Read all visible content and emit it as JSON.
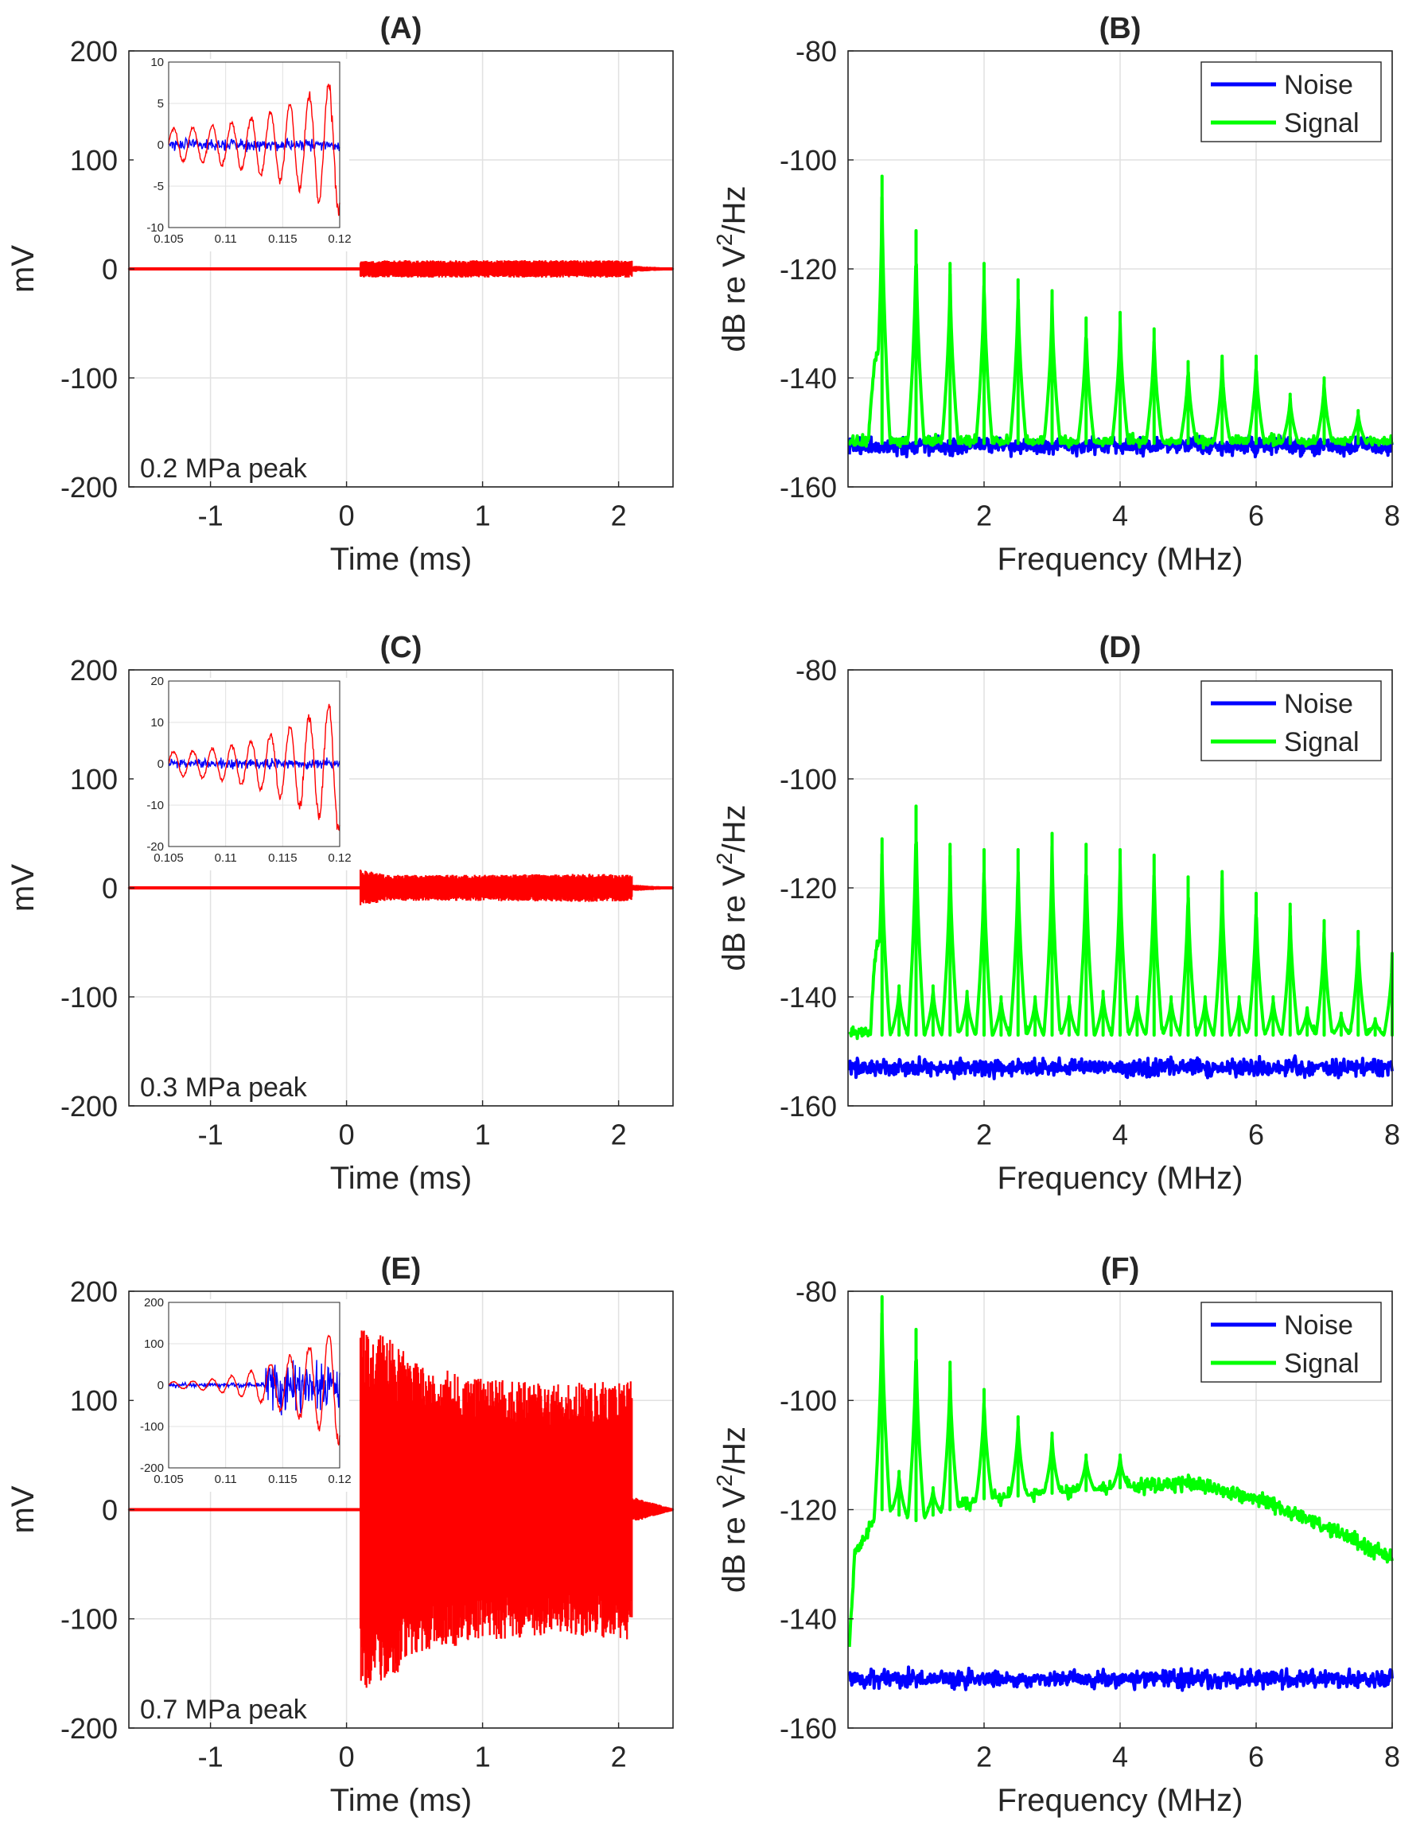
{
  "figure": {
    "panels": [
      {
        "id": "A",
        "title": "(A)",
        "kind": "time"
      },
      {
        "id": "B",
        "title": "(B)",
        "kind": "spectrum"
      },
      {
        "id": "C",
        "title": "(C)",
        "kind": "time"
      },
      {
        "id": "D",
        "title": "(D)",
        "kind": "spectrum"
      },
      {
        "id": "E",
        "title": "(E)",
        "kind": "time"
      },
      {
        "id": "F",
        "title": "(F)",
        "kind": "spectrum"
      }
    ]
  },
  "colors": {
    "time_trace": "#ff0000",
    "inset_blue": "#0000ff",
    "noise": "#0000ff",
    "signal": "#00ff00",
    "grid": "#e1e1e1",
    "axis": "#262626"
  },
  "chart_data": [
    {
      "panel": "A",
      "type": "line",
      "title": "(A)",
      "xlabel": "Time (ms)",
      "ylabel": "mV",
      "xlim": [
        -1.6,
        2.4
      ],
      "ylim": [
        -200,
        200
      ],
      "xticks": [
        -1,
        0,
        1,
        2
      ],
      "yticks": [
        -200,
        -100,
        0,
        100,
        200
      ],
      "annotation": "0.2 MPa peak",
      "series": [
        {
          "name": "",
          "color": "#ff0000",
          "envelope": [
            [
              -1.6,
              1
            ],
            [
              0.1,
              1
            ],
            [
              0.1,
              8
            ],
            [
              0.3,
              8
            ],
            [
              1.0,
              8
            ],
            [
              1.8,
              8
            ],
            [
              2.1,
              8
            ],
            [
              2.1,
              3
            ],
            [
              2.4,
              1
            ]
          ]
        }
      ],
      "inset": {
        "xlim": [
          0.105,
          0.12
        ],
        "ylim": [
          -10,
          10
        ],
        "xticks": [
          0.105,
          0.11,
          0.115,
          0.12
        ],
        "yticks": [
          -10,
          -5,
          0,
          5,
          10
        ],
        "red": {
          "amp_start": 2,
          "amp_end": 8,
          "period": 0.0017
        },
        "blue": {
          "amp": 0.6
        }
      }
    },
    {
      "panel": "B",
      "type": "line",
      "title": "(B)",
      "xlabel": "Frequency (MHz)",
      "ylabel": "dB re V²/Hz",
      "xlim": [
        0,
        8
      ],
      "ylim": [
        -160,
        -80
      ],
      "xticks": [
        2,
        4,
        6,
        8
      ],
      "yticks": [
        -160,
        -140,
        -120,
        -100,
        -80
      ],
      "legend": {
        "position": "top-right",
        "entries": [
          "Noise",
          "Signal"
        ]
      },
      "series": [
        {
          "name": "Noise",
          "color": "#0000ff",
          "baseline": -152.5
        },
        {
          "name": "Signal",
          "color": "#00ff00",
          "baseline": -152,
          "peaks": [
            [
              0.5,
              -103
            ],
            [
              1.0,
              -113
            ],
            [
              1.5,
              -119
            ],
            [
              2.0,
              -119
            ],
            [
              2.5,
              -122
            ],
            [
              3.0,
              -124
            ],
            [
              3.5,
              -129
            ],
            [
              4.0,
              -128
            ],
            [
              4.5,
              -131
            ],
            [
              5.0,
              -137
            ],
            [
              5.5,
              -136
            ],
            [
              6.0,
              -136
            ],
            [
              6.5,
              -143
            ],
            [
              7.0,
              -140
            ],
            [
              7.5,
              -146
            ]
          ],
          "bump": {
            "center": 0.45,
            "peak": -135,
            "width": 0.15
          }
        }
      ]
    },
    {
      "panel": "C",
      "type": "line",
      "title": "(C)",
      "xlabel": "Time (ms)",
      "ylabel": "mV",
      "xlim": [
        -1.6,
        2.4
      ],
      "ylim": [
        -200,
        200
      ],
      "xticks": [
        -1,
        0,
        1,
        2
      ],
      "yticks": [
        -200,
        -100,
        0,
        100,
        200
      ],
      "annotation": "0.3 MPa peak",
      "series": [
        {
          "name": "",
          "color": "#ff0000",
          "envelope": [
            [
              -1.6,
              1
            ],
            [
              0.1,
              1
            ],
            [
              0.1,
              17
            ],
            [
              0.3,
              12
            ],
            [
              1.0,
              12
            ],
            [
              1.8,
              13
            ],
            [
              2.1,
              12
            ],
            [
              2.1,
              3
            ],
            [
              2.4,
              1
            ]
          ]
        }
      ],
      "inset": {
        "xlim": [
          0.105,
          0.12
        ],
        "ylim": [
          -20,
          20
        ],
        "xticks": [
          0.105,
          0.11,
          0.115,
          0.12
        ],
        "yticks": [
          -20,
          -10,
          0,
          10,
          20
        ],
        "red": {
          "amp_start": 3,
          "amp_end": 16,
          "period": 0.0017
        },
        "blue": {
          "amp": 1
        }
      }
    },
    {
      "panel": "D",
      "type": "line",
      "title": "(D)",
      "xlabel": "Frequency (MHz)",
      "ylabel": "dB re V²/Hz",
      "xlim": [
        0,
        8
      ],
      "ylim": [
        -160,
        -80
      ],
      "xticks": [
        2,
        4,
        6,
        8
      ],
      "yticks": [
        -160,
        -140,
        -120,
        -100,
        -80
      ],
      "legend": {
        "position": "top-right",
        "entries": [
          "Noise",
          "Signal"
        ]
      },
      "series": [
        {
          "name": "Noise",
          "color": "#0000ff",
          "baseline": -153
        },
        {
          "name": "Signal",
          "color": "#00ff00",
          "baseline": -147,
          "peaks": [
            [
              0.5,
              -111
            ],
            [
              0.75,
              -138
            ],
            [
              1.0,
              -105
            ],
            [
              1.25,
              -138
            ],
            [
              1.5,
              -112
            ],
            [
              1.75,
              -139
            ],
            [
              2.0,
              -113
            ],
            [
              2.25,
              -140
            ],
            [
              2.5,
              -113
            ],
            [
              2.75,
              -140
            ],
            [
              3.0,
              -110
            ],
            [
              3.25,
              -140
            ],
            [
              3.5,
              -112
            ],
            [
              3.75,
              -139
            ],
            [
              4.0,
              -113
            ],
            [
              4.25,
              -140
            ],
            [
              4.5,
              -114
            ],
            [
              4.75,
              -140
            ],
            [
              5.0,
              -118
            ],
            [
              5.25,
              -140
            ],
            [
              5.5,
              -117
            ],
            [
              5.75,
              -140
            ],
            [
              6.0,
              -121
            ],
            [
              6.25,
              -140
            ],
            [
              6.5,
              -123
            ],
            [
              6.75,
              -142
            ],
            [
              7.0,
              -126
            ],
            [
              7.25,
              -143
            ],
            [
              7.5,
              -128
            ],
            [
              7.75,
              -144
            ],
            [
              8.0,
              -132
            ]
          ],
          "bump": {
            "center": 0.45,
            "peak": -130,
            "width": 0.12
          }
        }
      ]
    },
    {
      "panel": "E",
      "type": "line",
      "title": "(E)",
      "xlabel": "Time (ms)",
      "ylabel": "mV",
      "xlim": [
        -1.6,
        2.4
      ],
      "ylim": [
        -200,
        200
      ],
      "xticks": [
        -1,
        0,
        1,
        2
      ],
      "yticks": [
        -200,
        -100,
        0,
        100,
        200
      ],
      "annotation": "0.7 MPa peak",
      "series": [
        {
          "name": "",
          "color": "#ff0000",
          "envelope": [
            [
              -1.6,
              1
            ],
            [
              0.1,
              1
            ],
            [
              0.1,
              165
            ],
            [
              0.3,
              160
            ],
            [
              0.5,
              135
            ],
            [
              1.0,
              120
            ],
            [
              1.5,
              115
            ],
            [
              2.1,
              120
            ],
            [
              2.1,
              12
            ],
            [
              2.4,
              1
            ]
          ]
        }
      ],
      "inset": {
        "xlim": [
          0.105,
          0.12
        ],
        "ylim": [
          -200,
          200
        ],
        "xticks": [
          0.105,
          0.11,
          0.115,
          0.12
        ],
        "yticks": [
          -200,
          -100,
          0,
          100,
          200
        ],
        "red": {
          "amp_start": 8,
          "amp_end": 140,
          "period": 0.0017
        },
        "blue": {
          "amp": 5,
          "burst_from": 0.1135,
          "burst_amp": 50
        }
      }
    },
    {
      "panel": "F",
      "type": "line",
      "title": "(F)",
      "xlabel": "Frequency (MHz)",
      "ylabel": "dB re V²/Hz",
      "xlim": [
        0,
        8
      ],
      "ylim": [
        -160,
        -80
      ],
      "xticks": [
        2,
        4,
        6,
        8
      ],
      "yticks": [
        -160,
        -140,
        -120,
        -100,
        -80
      ],
      "legend": {
        "position": "top-right",
        "entries": [
          "Noise",
          "Signal"
        ]
      },
      "series": [
        {
          "name": "Noise",
          "color": "#0000ff",
          "baseline": -151
        },
        {
          "name": "Signal",
          "color": "#00ff00",
          "baseline_curve": [
            [
              0,
              -149
            ],
            [
              0.1,
              -128
            ],
            [
              0.5,
              -120
            ],
            [
              1.0,
              -122
            ],
            [
              2.0,
              -118
            ],
            [
              3.0,
              -117
            ],
            [
              4.0,
              -116
            ],
            [
              5.0,
              -115
            ],
            [
              6.0,
              -118
            ],
            [
              7.0,
              -123
            ],
            [
              8.0,
              -129
            ]
          ],
          "peaks": [
            [
              0.5,
              -81
            ],
            [
              0.75,
              -113
            ],
            [
              1.0,
              -87
            ],
            [
              1.25,
              -116
            ],
            [
              1.5,
              -93
            ],
            [
              2.0,
              -98
            ],
            [
              2.5,
              -103
            ],
            [
              3.0,
              -106
            ],
            [
              3.5,
              -110
            ],
            [
              4.0,
              -110
            ]
          ]
        }
      ]
    }
  ]
}
